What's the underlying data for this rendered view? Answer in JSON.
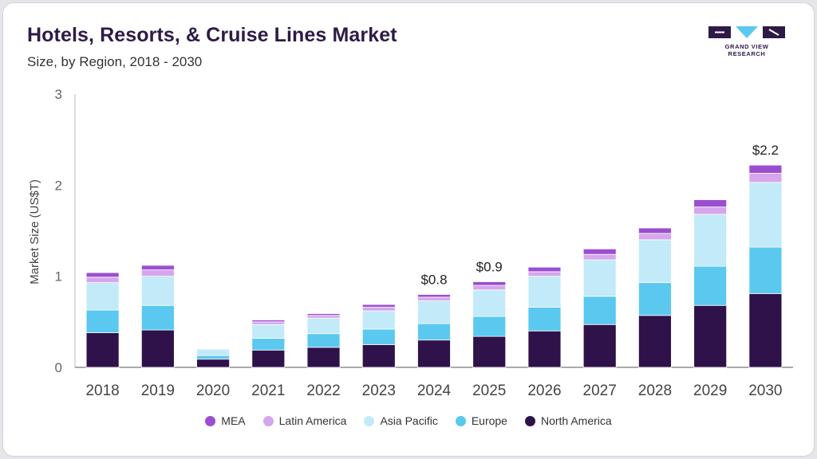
{
  "header": {
    "title": "Hotels, Resorts, & Cruise Lines Market",
    "subtitle": "Size, by Region, 2018 - 2030"
  },
  "brand": {
    "name": "GRAND VIEW RESEARCH",
    "color": "#2e1a47",
    "accent": "#5bc8f0"
  },
  "chart_data": {
    "type": "bar",
    "stacked": true,
    "title": "Hotels, Resorts, & Cruise Lines Market",
    "subtitle": "Size, by Region, 2018 - 2030",
    "xlabel": "",
    "ylabel": "Market Size (US$T)",
    "ylim": [
      0,
      3
    ],
    "yticks": [
      0,
      1,
      2,
      3
    ],
    "categories": [
      "2018",
      "2019",
      "2020",
      "2021",
      "2022",
      "2023",
      "2024",
      "2025",
      "2026",
      "2027",
      "2028",
      "2029",
      "2030"
    ],
    "series": [
      {
        "name": "North America",
        "color": "#2e1249",
        "values": [
          0.38,
          0.41,
          0.09,
          0.19,
          0.22,
          0.25,
          0.3,
          0.34,
          0.4,
          0.47,
          0.57,
          0.68,
          0.81
        ]
      },
      {
        "name": "Europe",
        "color": "#5bc8f0",
        "values": [
          0.25,
          0.27,
          0.04,
          0.13,
          0.15,
          0.17,
          0.18,
          0.22,
          0.26,
          0.31,
          0.36,
          0.43,
          0.51
        ]
      },
      {
        "name": "Asia Pacific",
        "color": "#c2eaf8",
        "values": [
          0.3,
          0.32,
          0.07,
          0.15,
          0.17,
          0.2,
          0.25,
          0.29,
          0.34,
          0.4,
          0.47,
          0.57,
          0.71
        ]
      },
      {
        "name": "Latin America",
        "color": "#d6a6ec",
        "values": [
          0.06,
          0.07,
          0.0,
          0.03,
          0.03,
          0.04,
          0.04,
          0.05,
          0.05,
          0.06,
          0.07,
          0.08,
          0.1
        ]
      },
      {
        "name": "MEA",
        "color": "#9b4fd0",
        "values": [
          0.05,
          0.05,
          0.0,
          0.02,
          0.02,
          0.03,
          0.03,
          0.04,
          0.05,
          0.06,
          0.06,
          0.08,
          0.09
        ]
      }
    ],
    "legend_order": [
      "MEA",
      "Latin America",
      "Asia Pacific",
      "Europe",
      "North America"
    ],
    "data_labels": [
      {
        "category": "2024",
        "text": "$0.8"
      },
      {
        "category": "2025",
        "text": "$0.9"
      },
      {
        "category": "2030",
        "text": "$2.2"
      }
    ],
    "legend_position": "bottom-center",
    "grid": false
  }
}
